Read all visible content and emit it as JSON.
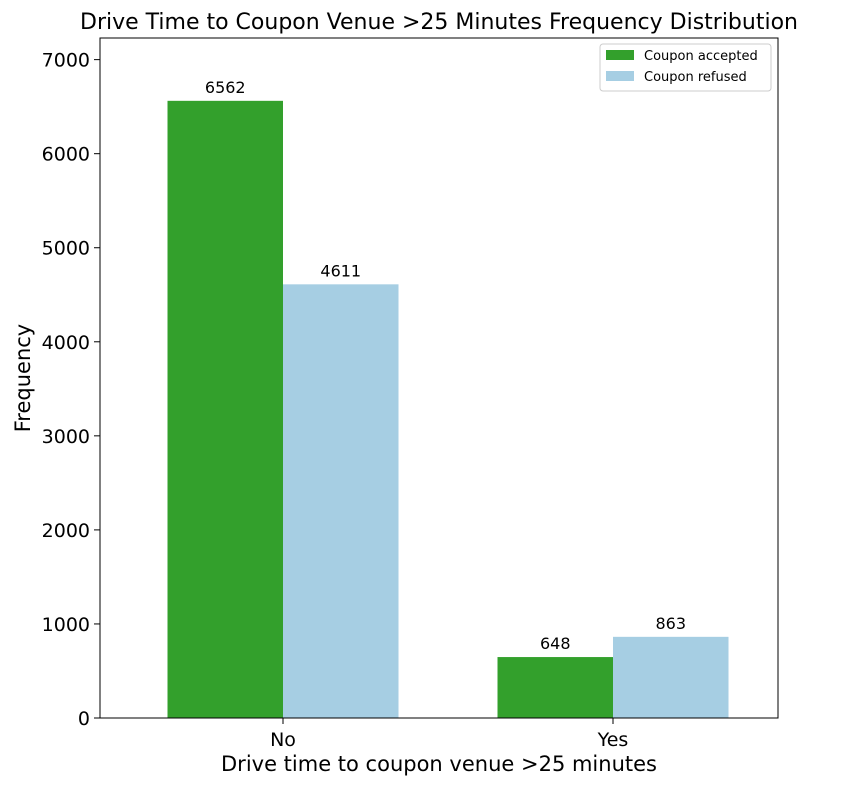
{
  "chart_data": {
    "type": "bar",
    "title": "Drive Time to Coupon Venue >25 Minutes Frequency Distribution",
    "xlabel": "Drive time to coupon venue >25 minutes",
    "ylabel": "Frequency",
    "categories": [
      "No",
      "Yes"
    ],
    "series": [
      {
        "name": "Coupon accepted",
        "values": [
          6562,
          648
        ],
        "color": "#33a02c"
      },
      {
        "name": "Coupon refused",
        "values": [
          4611,
          863
        ],
        "color": "#a6cee3"
      }
    ],
    "ylim": [
      0,
      7230
    ],
    "yticks": [
      0,
      1000,
      2000,
      3000,
      4000,
      5000,
      6000,
      7000
    ],
    "grid": false,
    "legend_position": "top-right"
  }
}
